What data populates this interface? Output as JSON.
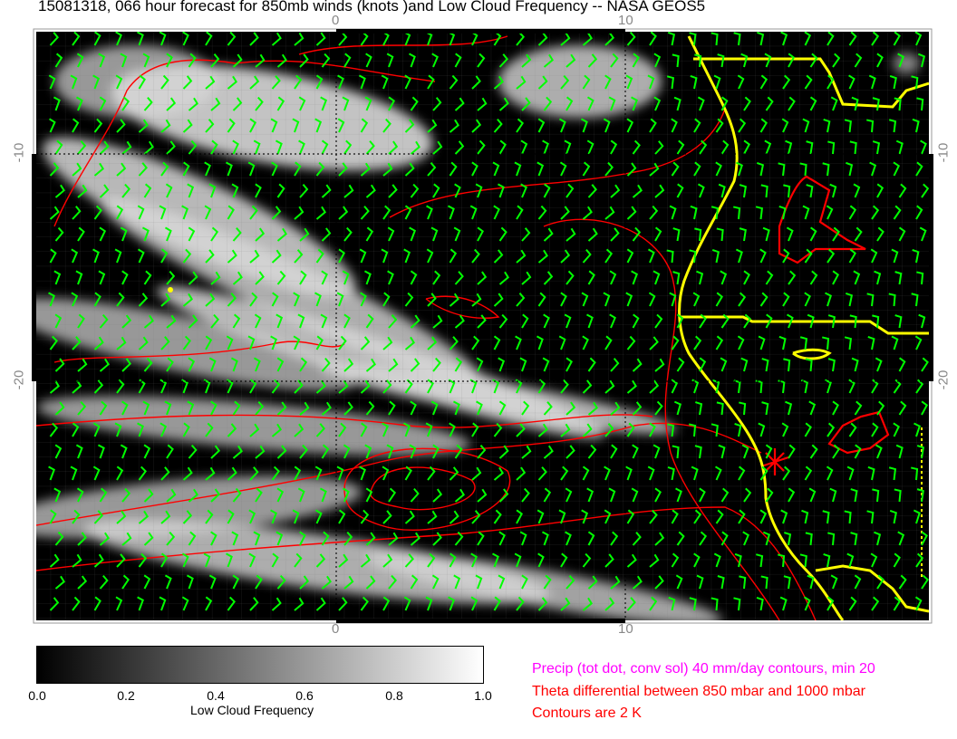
{
  "title": "15081318, 066 hour forecast for 850mb winds (knots )and Low Cloud Frequency -- NASA GEOS5",
  "axes": {
    "top_ticks": [
      "0",
      "10"
    ],
    "bottom_ticks": [
      "0",
      "10"
    ],
    "left_ticks": [
      "-10",
      "-20"
    ],
    "right_ticks": [
      "-10",
      "-20"
    ]
  },
  "colors": {
    "wind_barbs": "#00ff00",
    "theta_contours": "#ff0000",
    "coastline": "#ffff00",
    "precip_contours": "#ff00ff"
  },
  "colorbar": {
    "labels": [
      "0.0",
      "0.2",
      "0.4",
      "0.6",
      "0.8",
      "1.0"
    ],
    "title": "Low Cloud Frequency",
    "range": [
      0.0,
      1.0
    ]
  },
  "notes": {
    "precip": "Precip (tot dot, conv sol) 40 mm/day contours, min 20",
    "theta": "Theta differential between 850 mbar and 1000 mbar",
    "contours": "Contours are 2 K"
  }
}
